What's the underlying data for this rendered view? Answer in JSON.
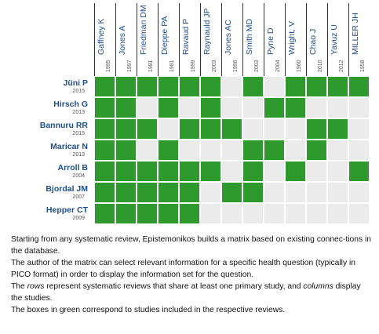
{
  "columns": [
    {
      "name": "Gaffney K",
      "year": "1995"
    },
    {
      "name": "Jones A",
      "year": "1997"
    },
    {
      "name": "Friedman DM",
      "year": "1981"
    },
    {
      "name": "Dieppe PA",
      "year": "1981"
    },
    {
      "name": "Ravaud P",
      "year": "1999"
    },
    {
      "name": "Raynauld JP",
      "year": "2003"
    },
    {
      "name": "Jones AC",
      "year": "1996"
    },
    {
      "name": "Smith MD",
      "year": "2003"
    },
    {
      "name": "Pyne D",
      "year": "2004"
    },
    {
      "name": "Wright, V",
      "year": "1960"
    },
    {
      "name": "Chao J",
      "year": "2010"
    },
    {
      "name": "Yavuz U",
      "year": "2012"
    },
    {
      "name": "MILLER JH",
      "year": "1958"
    }
  ],
  "rows": [
    {
      "name": "Jüni P",
      "year": "2015",
      "cells": [
        1,
        1,
        1,
        1,
        1,
        1,
        0,
        1,
        0,
        1,
        1,
        1,
        1
      ]
    },
    {
      "name": "Hirsch G",
      "year": "2013",
      "cells": [
        1,
        1,
        0,
        1,
        0,
        1,
        0,
        0,
        1,
        1,
        0,
        0,
        0
      ]
    },
    {
      "name": "Bannuru RR",
      "year": "2015",
      "cells": [
        1,
        1,
        1,
        0,
        1,
        1,
        1,
        0,
        0,
        0,
        1,
        1,
        0
      ]
    },
    {
      "name": "Maricar N",
      "year": "2013",
      "cells": [
        1,
        1,
        0,
        1,
        0,
        0,
        0,
        1,
        1,
        0,
        1,
        0,
        0
      ]
    },
    {
      "name": "Arroll B",
      "year": "2004",
      "cells": [
        1,
        1,
        1,
        1,
        1,
        1,
        0,
        1,
        0,
        1,
        0,
        0,
        1
      ]
    },
    {
      "name": "Bjordal JM",
      "year": "2007",
      "cells": [
        1,
        1,
        1,
        1,
        1,
        0,
        1,
        1,
        0,
        0,
        0,
        0,
        0
      ]
    },
    {
      "name": "Hepper CT",
      "year": "2009",
      "cells": [
        1,
        1,
        1,
        1,
        1,
        0,
        0,
        0,
        0,
        0,
        0,
        0,
        0
      ]
    }
  ],
  "colors": {
    "included": "#2e9a2e",
    "empty": "#ebebeb"
  },
  "text": {
    "p1": "Starting from any systematic review, Epistemonikos builds a matrix based on existing connec-tions in the database.",
    "p2": "The author of the matrix can select relevant information for a specific health question (typically in PICO format) in order to display the information set for the question.",
    "p3a": "The ",
    "p3b": "rows",
    "p3c": " represent systematic reviews that share at least one primary study, and ",
    "p3d": "columns",
    "p3e": " display the studies.",
    "p4": "The boxes in green correspond to studies included in the respective reviews."
  }
}
